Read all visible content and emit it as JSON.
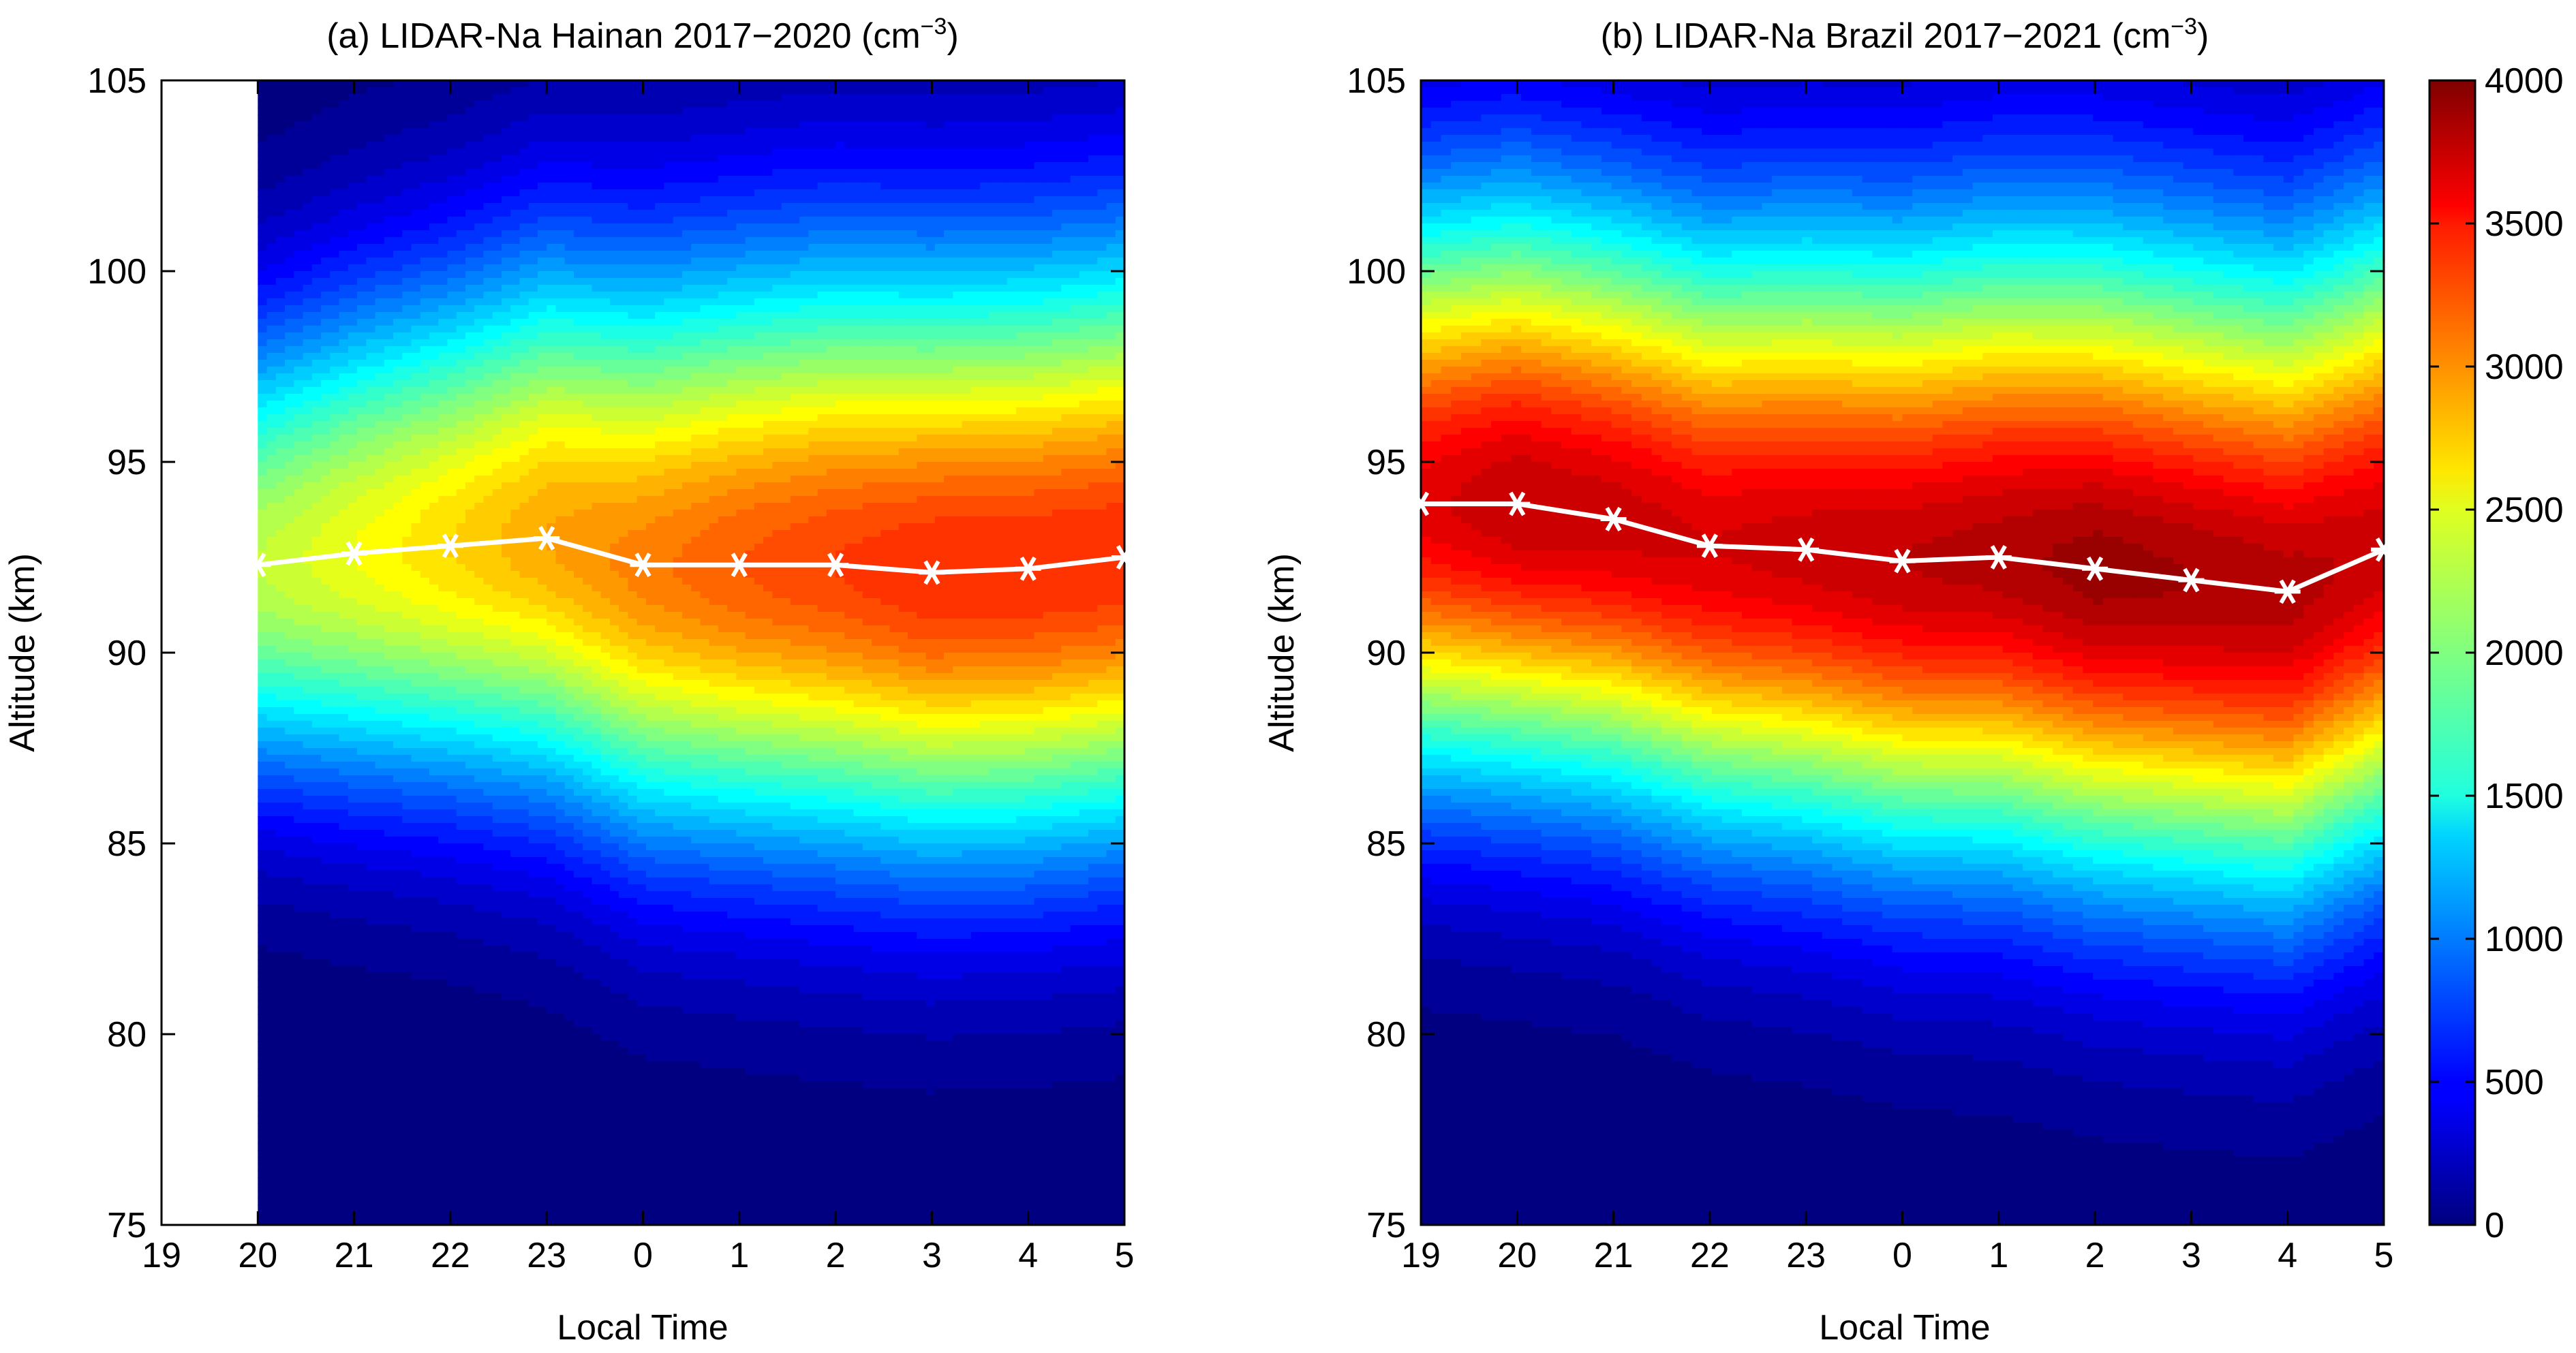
{
  "chart_data": [
    {
      "type": "heatmap",
      "title": "(a) LIDAR-Na Hainan 2017−2020 (cm",
      "title_sup": "−3",
      "title_end": ")",
      "xlabel": "Local Time",
      "ylabel": "Altitude (km)",
      "xticks": [
        "19",
        "20",
        "21",
        "22",
        "23",
        "0",
        "1",
        "2",
        "3",
        "4",
        "5"
      ],
      "yticks": [
        "105",
        "100",
        "95",
        "90",
        "85",
        "80",
        "75"
      ],
      "ylim": [
        75,
        105
      ],
      "x_hours": [
        20,
        21,
        22,
        23,
        24,
        25,
        26,
        27,
        28,
        29
      ],
      "peak_line": {
        "x": [
          "20",
          "21",
          "22",
          "23",
          "0",
          "1",
          "2",
          "3",
          "4",
          "5"
        ],
        "y": [
          92.3,
          92.6,
          92.8,
          93.0,
          92.3,
          92.3,
          92.3,
          92.1,
          92.2,
          92.5
        ]
      },
      "peak_density": [
        2300,
        2500,
        2700,
        2900,
        3050,
        3200,
        3300,
        3400,
        3400,
        3400
      ],
      "layer_width_km": [
        4.2,
        4.5,
        4.7,
        5.0,
        5.2,
        5.3,
        5.4,
        5.4,
        5.4,
        5.4
      ],
      "line_color": "#ffffff"
    },
    {
      "type": "heatmap",
      "title": "(b) LIDAR-Na Brazil 2017−2021 (cm",
      "title_sup": "−3",
      "title_end": ")",
      "xlabel": "Local Time",
      "ylabel": "Altitude (km)",
      "xticks": [
        "19",
        "20",
        "21",
        "22",
        "23",
        "0",
        "1",
        "2",
        "3",
        "4",
        "5"
      ],
      "yticks": [
        "105",
        "100",
        "95",
        "90",
        "85",
        "80",
        "75"
      ],
      "ylim": [
        75,
        105
      ],
      "x_hours": [
        19,
        20,
        21,
        22,
        23,
        24,
        25,
        26,
        27,
        28,
        29
      ],
      "peak_line": {
        "x": [
          "19",
          "20",
          "21",
          "22",
          "23",
          "0",
          "1",
          "2",
          "3",
          "4",
          "5"
        ],
        "y": [
          93.9,
          93.9,
          93.5,
          92.8,
          92.7,
          92.4,
          92.5,
          92.2,
          91.9,
          91.6,
          92.7
        ]
      },
      "peak_density": [
        3650,
        3800,
        3750,
        3700,
        3750,
        3800,
        3850,
        3950,
        3900,
        3850,
        3750
      ],
      "layer_width_km": [
        5.2,
        5.3,
        5.3,
        5.4,
        5.5,
        5.6,
        5.7,
        5.8,
        5.8,
        5.8,
        5.8
      ],
      "colorbar": {
        "range": [
          0,
          4000
        ],
        "ticks": [
          "4000",
          "3500",
          "3000",
          "2500",
          "2000",
          "1500",
          "1000",
          "500",
          "0"
        ],
        "colormap": "jet"
      },
      "line_color": "#ffffff"
    }
  ]
}
